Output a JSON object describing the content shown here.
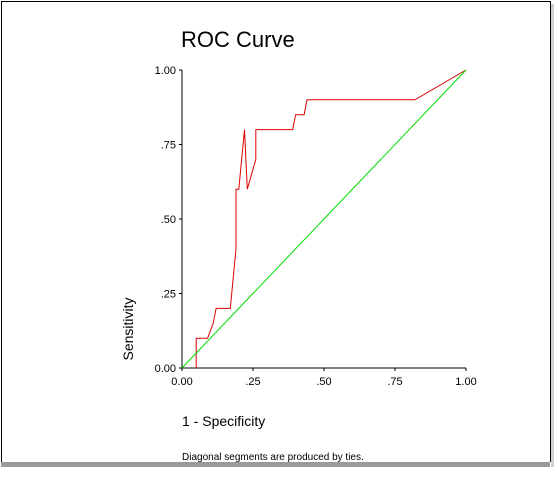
{
  "chart_data": {
    "type": "line",
    "title": "ROC Curve",
    "xlabel": "1 - Specificity",
    "ylabel": "Sensitivity",
    "xlim": [
      0,
      1
    ],
    "ylim": [
      0,
      1
    ],
    "x_ticks": [
      "0.00",
      ".25",
      ".50",
      ".75",
      "1.00"
    ],
    "y_ticks": [
      "0.00",
      ".25",
      ".50",
      ".75",
      "1.00"
    ],
    "grid": false,
    "series": [
      {
        "color": "#dd0000",
        "x": [
          0.05,
          0.05,
          0.09,
          0.11,
          0.12,
          0.17,
          0.19,
          0.19,
          0.2,
          0.22,
          0.23,
          0.26,
          0.26,
          0.39,
          0.4,
          0.43,
          0.44,
          0.82,
          1.0
        ],
        "y": [
          0.0,
          0.1,
          0.1,
          0.15,
          0.2,
          0.2,
          0.4,
          0.6,
          0.6,
          0.8,
          0.6,
          0.7,
          0.8,
          0.8,
          0.85,
          0.85,
          0.9,
          0.9,
          1.0
        ]
      },
      {
        "color": "#00dd00",
        "x": [
          0,
          1
        ],
        "y": [
          0,
          1
        ]
      }
    ],
    "footnote": "Diagonal segments are produced by ties."
  }
}
